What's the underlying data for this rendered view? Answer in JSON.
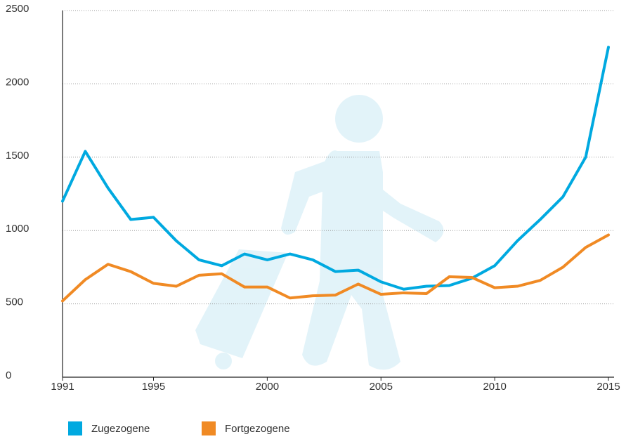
{
  "chart_data": {
    "type": "line",
    "x": [
      1991,
      1992,
      1993,
      1994,
      1995,
      1996,
      1997,
      1998,
      1999,
      2000,
      2001,
      2002,
      2003,
      2004,
      2005,
      2006,
      2007,
      2008,
      2009,
      2010,
      2011,
      2012,
      2013,
      2014,
      2015
    ],
    "series": [
      {
        "name": "Zugezogene",
        "color": "#00a9e0",
        "values": [
          1200,
          1540,
          1290,
          1075,
          1090,
          930,
          800,
          760,
          840,
          800,
          840,
          800,
          720,
          730,
          650,
          600,
          620,
          625,
          675,
          760,
          930,
          1075,
          1230,
          1500,
          2250
        ]
      },
      {
        "name": "Fortgezogene",
        "color": "#f08a24",
        "values": [
          520,
          665,
          770,
          720,
          640,
          620,
          695,
          705,
          615,
          615,
          540,
          555,
          560,
          635,
          565,
          575,
          570,
          685,
          680,
          610,
          620,
          660,
          750,
          885,
          970
        ]
      }
    ],
    "xlim": [
      1991,
      2015
    ],
    "xticks": [
      1991,
      1995,
      2000,
      2005,
      2010,
      2015
    ],
    "ylim": [
      0,
      2500
    ],
    "yticks": [
      0,
      500,
      1000,
      1500,
      2000,
      2500
    ],
    "grid": true
  }
}
